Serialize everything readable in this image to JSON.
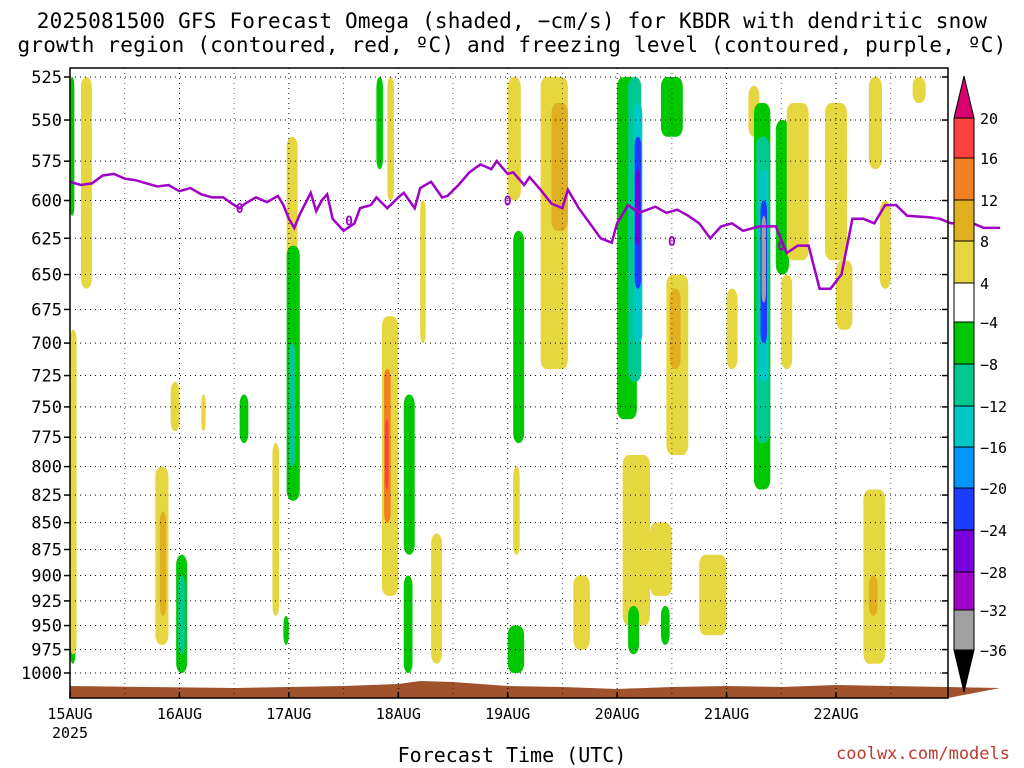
{
  "title_line1": "2025081500 GFS Forecast Omega (shaded, −cm/s) for KBDR with dendritic snow",
  "title_line2": "growth region (contoured, red, ºC) and freezing level (contoured, purple, ºC)",
  "x_axis_title": "Forecast Time (UTC)",
  "credit": "coolwx.com/models",
  "colors": {
    "freezing_line": "#a100c8",
    "ground": "#a0522d",
    "grid": "#000000"
  },
  "chart_data": {
    "type": "heatmap",
    "title": "2025081500 GFS Forecast Omega (shaded, −cm/s) for KBDR with dendritic snow growth region (contoured, red, ºC) and freezing level (contoured, purple, ºC)",
    "xlabel": "Forecast Time (UTC)",
    "ylabel": "",
    "y_scale": "pressure (log, inverted)",
    "ylim": [
      1000,
      525
    ],
    "xlim": [
      "15AUG 00Z",
      "22AUG 12Z"
    ],
    "y_ticks": [
      525,
      550,
      575,
      600,
      625,
      650,
      675,
      700,
      725,
      750,
      775,
      800,
      825,
      850,
      875,
      900,
      925,
      950,
      975,
      1000
    ],
    "x_ticks": [
      {
        "label": "15AUG",
        "sub": "2025",
        "day": 0
      },
      {
        "label": "16AUG",
        "sub": "",
        "day": 1
      },
      {
        "label": "17AUG",
        "sub": "",
        "day": 2
      },
      {
        "label": "18AUG",
        "sub": "",
        "day": 3
      },
      {
        "label": "19AUG",
        "sub": "",
        "day": 4
      },
      {
        "label": "20AUG",
        "sub": "",
        "day": 5
      },
      {
        "label": "21AUG",
        "sub": "",
        "day": 6
      },
      {
        "label": "22AUG",
        "sub": "",
        "day": 7
      }
    ],
    "grid": true,
    "colorbar": {
      "levels": [
        20,
        16,
        12,
        8,
        4,
        -4,
        -8,
        -12,
        -16,
        -20,
        -24,
        -28,
        -32,
        -36
      ],
      "colors": [
        "#d7006e",
        "#ff4040",
        "#f08020",
        "#e0b020",
        "#e6d640",
        "#ffffff",
        "#00c800",
        "#00c890",
        "#00c8c8",
        "#0096ff",
        "#1e3cff",
        "#7800dc",
        "#a000c8",
        "#a0a0a0",
        "#000000"
      ]
    },
    "freezing_level": {
      "label": "0",
      "points": [
        [
          0,
          588
        ],
        [
          0.1,
          590
        ],
        [
          0.2,
          589
        ],
        [
          0.3,
          584
        ],
        [
          0.4,
          583
        ],
        [
          0.5,
          586
        ],
        [
          0.6,
          587
        ],
        [
          0.7,
          589
        ],
        [
          0.8,
          591
        ],
        [
          0.9,
          590
        ],
        [
          1.0,
          594
        ],
        [
          1.1,
          592
        ],
        [
          1.2,
          596
        ],
        [
          1.3,
          598
        ],
        [
          1.4,
          598
        ],
        [
          1.5,
          603
        ],
        [
          1.55,
          605
        ],
        [
          1.6,
          602
        ],
        [
          1.7,
          598
        ],
        [
          1.8,
          601
        ],
        [
          1.9,
          597
        ],
        [
          1.95,
          603
        ],
        [
          2.0,
          612
        ],
        [
          2.05,
          618
        ],
        [
          2.1,
          609
        ],
        [
          2.2,
          595
        ],
        [
          2.25,
          607
        ],
        [
          2.3,
          600
        ],
        [
          2.35,
          596
        ],
        [
          2.4,
          612
        ],
        [
          2.5,
          620
        ],
        [
          2.6,
          615
        ],
        [
          2.65,
          605
        ],
        [
          2.75,
          603
        ],
        [
          2.8,
          598
        ],
        [
          2.9,
          605
        ],
        [
          3.0,
          598
        ],
        [
          3.05,
          595
        ],
        [
          3.15,
          605
        ],
        [
          3.2,
          592
        ],
        [
          3.3,
          588
        ],
        [
          3.4,
          598
        ],
        [
          3.45,
          597
        ],
        [
          3.55,
          590
        ],
        [
          3.65,
          582
        ],
        [
          3.75,
          577
        ],
        [
          3.85,
          580
        ],
        [
          3.9,
          575
        ],
        [
          4.0,
          583
        ],
        [
          4.05,
          582
        ],
        [
          4.15,
          590
        ],
        [
          4.2,
          585
        ],
        [
          4.3,
          593
        ],
        [
          4.4,
          602
        ],
        [
          4.5,
          605
        ],
        [
          4.55,
          593
        ],
        [
          4.65,
          605
        ],
        [
          4.75,
          615
        ],
        [
          4.85,
          625
        ],
        [
          4.95,
          628
        ],
        [
          5.0,
          615
        ],
        [
          5.1,
          603
        ],
        [
          5.2,
          608
        ],
        [
          5.35,
          604
        ],
        [
          5.45,
          608
        ],
        [
          5.55,
          606
        ],
        [
          5.65,
          610
        ],
        [
          5.75,
          615
        ],
        [
          5.85,
          625
        ],
        [
          5.95,
          617
        ],
        [
          6.05,
          615
        ],
        [
          6.15,
          620
        ],
        [
          6.3,
          617
        ],
        [
          6.45,
          617
        ],
        [
          6.55,
          635
        ],
        [
          6.65,
          630
        ],
        [
          6.75,
          630
        ],
        [
          6.85,
          660
        ],
        [
          6.95,
          660
        ],
        [
          7.05,
          650
        ],
        [
          7.15,
          612
        ],
        [
          7.25,
          612
        ],
        [
          7.35,
          615
        ],
        [
          7.45,
          603
        ],
        [
          7.55,
          603
        ],
        [
          7.65,
          610
        ],
        [
          7.85,
          611
        ],
        [
          7.95,
          612
        ],
        [
          8.05,
          615
        ],
        [
          8.25,
          615
        ],
        [
          8.35,
          618
        ],
        [
          8.5,
          618
        ]
      ],
      "labels_at": [
        [
          1.55,
          605
        ],
        [
          2.55,
          613
        ],
        [
          4.0,
          600
        ],
        [
          5.5,
          627
        ],
        [
          6.5,
          630
        ]
      ]
    },
    "omega_regions": [
      {
        "x": 0.0,
        "w": 0.04,
        "p1": 525,
        "p2": 610,
        "level": -8
      },
      {
        "x": 0.0,
        "w": 0.05,
        "p1": 890,
        "p2": 990,
        "level": -8
      },
      {
        "x": 0.1,
        "w": 0.1,
        "p1": 525,
        "p2": 660,
        "level": 4
      },
      {
        "x": 0.0,
        "w": 0.06,
        "p1": 690,
        "p2": 980,
        "level": 4
      },
      {
        "x": 0.78,
        "w": 0.12,
        "p1": 800,
        "p2": 970,
        "level": 4
      },
      {
        "x": 0.82,
        "w": 0.06,
        "p1": 840,
        "p2": 940,
        "level": 8
      },
      {
        "x": 0.97,
        "w": 0.1,
        "p1": 880,
        "p2": 1000,
        "level": -8
      },
      {
        "x": 0.99,
        "w": 0.06,
        "p1": 900,
        "p2": 980,
        "level": -12
      },
      {
        "x": 0.92,
        "w": 0.08,
        "p1": 730,
        "p2": 770,
        "level": 4
      },
      {
        "x": 1.2,
        "w": 0.04,
        "p1": 740,
        "p2": 770,
        "level": 4
      },
      {
        "x": 1.55,
        "w": 0.08,
        "p1": 740,
        "p2": 780,
        "level": -8
      },
      {
        "x": 1.98,
        "w": 0.1,
        "p1": 560,
        "p2": 650,
        "level": 4
      },
      {
        "x": 1.85,
        "w": 0.06,
        "p1": 780,
        "p2": 940,
        "level": 4
      },
      {
        "x": 1.98,
        "w": 0.12,
        "p1": 630,
        "p2": 830,
        "level": -8
      },
      {
        "x": 2.0,
        "w": 0.06,
        "p1": 700,
        "p2": 800,
        "level": -12
      },
      {
        "x": 1.95,
        "w": 0.05,
        "p1": 940,
        "p2": 970,
        "level": -8
      },
      {
        "x": 2.8,
        "w": 0.06,
        "p1": 525,
        "p2": 580,
        "level": -8
      },
      {
        "x": 2.9,
        "w": 0.06,
        "p1": 525,
        "p2": 600,
        "level": 4
      },
      {
        "x": 2.85,
        "w": 0.15,
        "p1": 680,
        "p2": 920,
        "level": 4
      },
      {
        "x": 2.87,
        "w": 0.06,
        "p1": 720,
        "p2": 850,
        "level": 12
      },
      {
        "x": 2.88,
        "w": 0.03,
        "p1": 760,
        "p2": 820,
        "level": 16
      },
      {
        "x": 3.05,
        "w": 0.1,
        "p1": 740,
        "p2": 880,
        "level": -8
      },
      {
        "x": 3.05,
        "w": 0.08,
        "p1": 900,
        "p2": 1000,
        "level": -8
      },
      {
        "x": 3.2,
        "w": 0.05,
        "p1": 600,
        "p2": 700,
        "level": 4
      },
      {
        "x": 3.3,
        "w": 0.1,
        "p1": 860,
        "p2": 990,
        "level": 4
      },
      {
        "x": 4.0,
        "w": 0.12,
        "p1": 525,
        "p2": 600,
        "level": 4
      },
      {
        "x": 4.05,
        "w": 0.1,
        "p1": 620,
        "p2": 780,
        "level": -8
      },
      {
        "x": 4.05,
        "w": 0.06,
        "p1": 800,
        "p2": 880,
        "level": 4
      },
      {
        "x": 4.3,
        "w": 0.25,
        "p1": 525,
        "p2": 720,
        "level": 4
      },
      {
        "x": 4.4,
        "w": 0.15,
        "p1": 540,
        "p2": 620,
        "level": 8
      },
      {
        "x": 4.6,
        "w": 0.15,
        "p1": 900,
        "p2": 975,
        "level": 4
      },
      {
        "x": 4.0,
        "w": 0.15,
        "p1": 950,
        "p2": 1000,
        "level": -8
      },
      {
        "x": 5.0,
        "w": 0.18,
        "p1": 525,
        "p2": 760,
        "level": -8
      },
      {
        "x": 5.1,
        "w": 0.12,
        "p1": 525,
        "p2": 730,
        "level": -12
      },
      {
        "x": 5.15,
        "w": 0.08,
        "p1": 540,
        "p2": 700,
        "level": -16
      },
      {
        "x": 5.16,
        "w": 0.06,
        "p1": 560,
        "p2": 660,
        "level": -24
      },
      {
        "x": 5.17,
        "w": 0.04,
        "p1": 580,
        "p2": 630,
        "level": -28
      },
      {
        "x": 5.4,
        "w": 0.2,
        "p1": 525,
        "p2": 560,
        "level": -8
      },
      {
        "x": 5.45,
        "w": 0.2,
        "p1": 650,
        "p2": 790,
        "level": 4
      },
      {
        "x": 5.48,
        "w": 0.1,
        "p1": 660,
        "p2": 720,
        "level": 8
      },
      {
        "x": 5.05,
        "w": 0.25,
        "p1": 790,
        "p2": 950,
        "level": 4
      },
      {
        "x": 5.3,
        "w": 0.2,
        "p1": 850,
        "p2": 920,
        "level": 4
      },
      {
        "x": 5.1,
        "w": 0.1,
        "p1": 930,
        "p2": 980,
        "level": -8
      },
      {
        "x": 5.4,
        "w": 0.08,
        "p1": 930,
        "p2": 970,
        "level": -8
      },
      {
        "x": 5.75,
        "w": 0.25,
        "p1": 880,
        "p2": 960,
        "level": 4
      },
      {
        "x": 6.0,
        "w": 0.1,
        "p1": 660,
        "p2": 720,
        "level": 4
      },
      {
        "x": 6.2,
        "w": 0.1,
        "p1": 530,
        "p2": 560,
        "level": 4
      },
      {
        "x": 6.25,
        "w": 0.15,
        "p1": 540,
        "p2": 820,
        "level": -8
      },
      {
        "x": 6.27,
        "w": 0.12,
        "p1": 560,
        "p2": 780,
        "level": -12
      },
      {
        "x": 6.3,
        "w": 0.08,
        "p1": 580,
        "p2": 730,
        "level": -16
      },
      {
        "x": 6.31,
        "w": 0.06,
        "p1": 600,
        "p2": 700,
        "level": -24
      },
      {
        "x": 6.32,
        "w": 0.04,
        "p1": 610,
        "p2": 670,
        "level": -32
      },
      {
        "x": 6.45,
        "w": 0.12,
        "p1": 550,
        "p2": 650,
        "level": -8
      },
      {
        "x": 6.5,
        "w": 0.1,
        "p1": 650,
        "p2": 720,
        "level": 4
      },
      {
        "x": 6.55,
        "w": 0.2,
        "p1": 540,
        "p2": 640,
        "level": 4
      },
      {
        "x": 6.9,
        "w": 0.2,
        "p1": 540,
        "p2": 640,
        "level": 4
      },
      {
        "x": 7.0,
        "w": 0.15,
        "p1": 640,
        "p2": 690,
        "level": 4
      },
      {
        "x": 7.3,
        "w": 0.12,
        "p1": 525,
        "p2": 580,
        "level": 4
      },
      {
        "x": 7.4,
        "w": 0.1,
        "p1": 600,
        "p2": 660,
        "level": 4
      },
      {
        "x": 7.7,
        "w": 0.12,
        "p1": 525,
        "p2": 540,
        "level": 4
      },
      {
        "x": 7.25,
        "w": 0.2,
        "p1": 820,
        "p2": 990,
        "level": 4
      },
      {
        "x": 7.3,
        "w": 0.08,
        "p1": 900,
        "p2": 940,
        "level": 8
      }
    ]
  }
}
